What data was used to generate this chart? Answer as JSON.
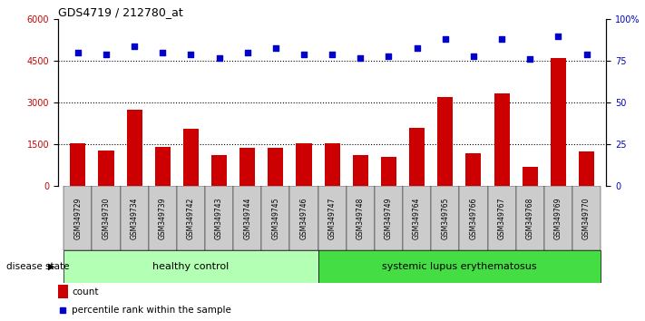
{
  "title": "GDS4719 / 212780_at",
  "samples": [
    "GSM349729",
    "GSM349730",
    "GSM349734",
    "GSM349739",
    "GSM349742",
    "GSM349743",
    "GSM349744",
    "GSM349745",
    "GSM349746",
    "GSM349747",
    "GSM349748",
    "GSM349749",
    "GSM349764",
    "GSM349765",
    "GSM349766",
    "GSM349767",
    "GSM349768",
    "GSM349769",
    "GSM349770"
  ],
  "counts": [
    1550,
    1280,
    2750,
    1420,
    2050,
    1130,
    1370,
    1380,
    1530,
    1530,
    1130,
    1060,
    2100,
    3200,
    1180,
    3350,
    700,
    4600,
    1250
  ],
  "percentiles": [
    80,
    79,
    84,
    80,
    79,
    77,
    80,
    83,
    79,
    79,
    77,
    78,
    83,
    88,
    78,
    88,
    76,
    90,
    79
  ],
  "healthy_count": 9,
  "lupus_count": 10,
  "bar_color": "#cc0000",
  "dot_color": "#0000cc",
  "ylim_left": [
    0,
    6000
  ],
  "ylim_right": [
    0,
    100
  ],
  "yticks_left": [
    0,
    1500,
    3000,
    4500,
    6000
  ],
  "yticks_right": [
    0,
    25,
    50,
    75,
    100
  ],
  "ytick_labels_right": [
    "0",
    "25",
    "50",
    "75",
    "100%"
  ],
  "grid_values": [
    1500,
    3000,
    4500
  ],
  "healthy_label": "healthy control",
  "lupus_label": "systemic lupus erythematosus",
  "disease_state_label": "disease state",
  "legend_count": "count",
  "legend_percentile": "percentile rank within the sample",
  "healthy_bg": "#b3ffb3",
  "lupus_bg": "#44dd44",
  "sample_bg": "#cccccc",
  "fig_bg": "#ffffff"
}
